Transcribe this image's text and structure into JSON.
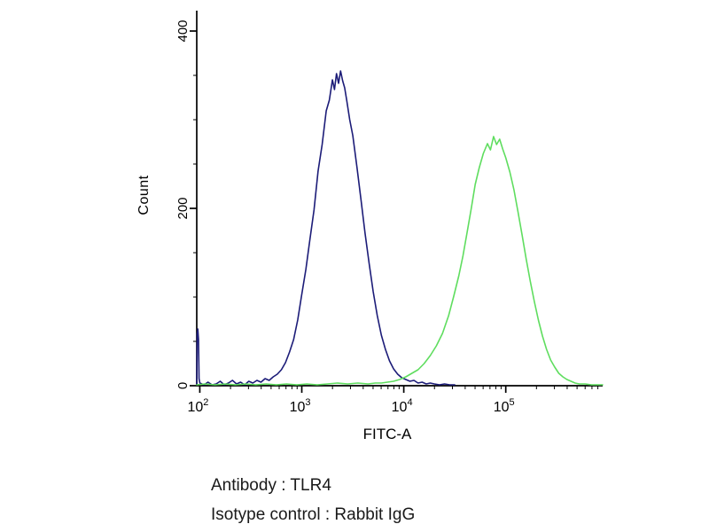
{
  "captions": {
    "antibody": "Antibody : TLR4",
    "isotype": "Isotype control : Rabbit IgG"
  },
  "colors": {
    "background": "#ffffff",
    "axis": "#000000",
    "text": "#1a1a1a",
    "blue_curve": "#1c1c78",
    "green_curve": "#5fdd5f"
  },
  "chart_data": {
    "type": "line",
    "subtype": "flow-cytometry-overlay-histogram",
    "title": "",
    "xlabel": "FITC-A",
    "ylabel": "Count",
    "x_scale": "log10",
    "x_domain_log10": [
      1.97,
      5.95
    ],
    "y_domain": [
      0,
      423
    ],
    "grid": false,
    "legend": "none",
    "y_major_ticks": [
      0,
      200,
      400
    ],
    "y_minor_ticks": [
      50,
      100,
      150,
      250,
      300,
      350
    ],
    "x_major_ticks": [
      {
        "log10": 2,
        "label_base": "10",
        "label_exp": "2"
      },
      {
        "log10": 3,
        "label_base": "10",
        "label_exp": "3"
      },
      {
        "log10": 4,
        "label_base": "10",
        "label_exp": "4"
      },
      {
        "log10": 5,
        "label_base": "10",
        "label_exp": "5"
      }
    ],
    "series": [
      {
        "name": "blue-peak",
        "color": "#1c1c78",
        "peak_log10x": 3.38,
        "peak_count": 355,
        "points": [
          [
            1.97,
            2
          ],
          [
            1.974,
            58
          ],
          [
            1.98,
            64
          ],
          [
            1.987,
            52
          ],
          [
            1.993,
            8
          ],
          [
            2.0,
            3
          ],
          [
            2.04,
            1
          ],
          [
            2.08,
            4
          ],
          [
            2.12,
            1
          ],
          [
            2.16,
            2
          ],
          [
            2.2,
            5
          ],
          [
            2.24,
            1
          ],
          [
            2.28,
            3
          ],
          [
            2.32,
            6
          ],
          [
            2.36,
            2
          ],
          [
            2.4,
            4
          ],
          [
            2.44,
            1
          ],
          [
            2.48,
            5
          ],
          [
            2.52,
            3
          ],
          [
            2.56,
            6
          ],
          [
            2.6,
            4
          ],
          [
            2.64,
            8
          ],
          [
            2.68,
            6
          ],
          [
            2.72,
            10
          ],
          [
            2.76,
            13
          ],
          [
            2.8,
            18
          ],
          [
            2.84,
            26
          ],
          [
            2.88,
            38
          ],
          [
            2.92,
            52
          ],
          [
            2.96,
            74
          ],
          [
            3.0,
            103
          ],
          [
            3.04,
            131
          ],
          [
            3.08,
            165
          ],
          [
            3.12,
            198
          ],
          [
            3.16,
            242
          ],
          [
            3.2,
            272
          ],
          [
            3.24,
            310
          ],
          [
            3.27,
            322
          ],
          [
            3.3,
            345
          ],
          [
            3.32,
            334
          ],
          [
            3.34,
            352
          ],
          [
            3.36,
            341
          ],
          [
            3.38,
            355
          ],
          [
            3.4,
            344
          ],
          [
            3.42,
            336
          ],
          [
            3.44,
            322
          ],
          [
            3.47,
            300
          ],
          [
            3.5,
            282
          ],
          [
            3.54,
            247
          ],
          [
            3.58,
            210
          ],
          [
            3.62,
            172
          ],
          [
            3.66,
            138
          ],
          [
            3.7,
            106
          ],
          [
            3.74,
            79
          ],
          [
            3.78,
            57
          ],
          [
            3.82,
            41
          ],
          [
            3.86,
            28
          ],
          [
            3.9,
            19
          ],
          [
            3.94,
            13
          ],
          [
            3.98,
            9
          ],
          [
            4.02,
            7
          ],
          [
            4.06,
            5
          ],
          [
            4.1,
            6
          ],
          [
            4.14,
            3
          ],
          [
            4.18,
            4
          ],
          [
            4.22,
            2
          ],
          [
            4.26,
            3
          ],
          [
            4.3,
            2
          ],
          [
            4.35,
            1
          ],
          [
            4.4,
            2
          ],
          [
            4.45,
            1
          ],
          [
            4.5,
            1
          ]
        ]
      },
      {
        "name": "green-peak",
        "color": "#5fdd5f",
        "peak_log10x": 4.88,
        "peak_count": 281,
        "points": [
          [
            1.97,
            1
          ],
          [
            2.05,
            2
          ],
          [
            2.15,
            1
          ],
          [
            2.25,
            2
          ],
          [
            2.35,
            1
          ],
          [
            2.45,
            2
          ],
          [
            2.55,
            1
          ],
          [
            2.65,
            2
          ],
          [
            2.75,
            1
          ],
          [
            2.85,
            2
          ],
          [
            2.95,
            1
          ],
          [
            3.05,
            2
          ],
          [
            3.15,
            1
          ],
          [
            3.25,
            2
          ],
          [
            3.35,
            3
          ],
          [
            3.45,
            2
          ],
          [
            3.55,
            3
          ],
          [
            3.65,
            2
          ],
          [
            3.72,
            3
          ],
          [
            3.78,
            3
          ],
          [
            3.84,
            4
          ],
          [
            3.9,
            5
          ],
          [
            3.96,
            7
          ],
          [
            4.02,
            10
          ],
          [
            4.08,
            14
          ],
          [
            4.14,
            18
          ],
          [
            4.2,
            25
          ],
          [
            4.26,
            34
          ],
          [
            4.32,
            45
          ],
          [
            4.38,
            59
          ],
          [
            4.44,
            79
          ],
          [
            4.49,
            101
          ],
          [
            4.54,
            124
          ],
          [
            4.58,
            146
          ],
          [
            4.62,
            172
          ],
          [
            4.66,
            199
          ],
          [
            4.7,
            227
          ],
          [
            4.74,
            246
          ],
          [
            4.78,
            262
          ],
          [
            4.82,
            273
          ],
          [
            4.85,
            266
          ],
          [
            4.88,
            281
          ],
          [
            4.91,
            272
          ],
          [
            4.94,
            278
          ],
          [
            4.97,
            267
          ],
          [
            5.0,
            257
          ],
          [
            5.04,
            241
          ],
          [
            5.08,
            221
          ],
          [
            5.12,
            196
          ],
          [
            5.16,
            170
          ],
          [
            5.2,
            143
          ],
          [
            5.24,
            118
          ],
          [
            5.28,
            95
          ],
          [
            5.32,
            74
          ],
          [
            5.36,
            56
          ],
          [
            5.4,
            41
          ],
          [
            5.44,
            29
          ],
          [
            5.48,
            21
          ],
          [
            5.52,
            14
          ],
          [
            5.56,
            10
          ],
          [
            5.6,
            7
          ],
          [
            5.64,
            5
          ],
          [
            5.68,
            3
          ],
          [
            5.72,
            2
          ],
          [
            5.78,
            2
          ],
          [
            5.84,
            1
          ],
          [
            5.9,
            1
          ],
          [
            5.95,
            1
          ]
        ]
      }
    ]
  }
}
